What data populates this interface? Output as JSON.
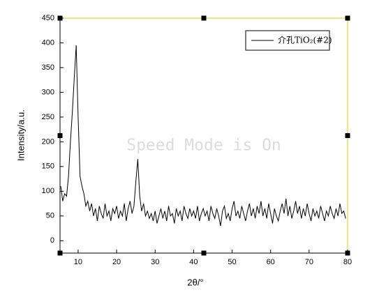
{
  "chart_data": {
    "type": "line",
    "xlabel": "2θ/°",
    "ylabel": "Intensity/a.u.",
    "watermark": "Speed Mode is On",
    "xlim": [
      5.3,
      80
    ],
    "ylim": [
      -25,
      450
    ],
    "xticks": [
      10,
      20,
      30,
      40,
      50,
      60,
      70,
      80
    ],
    "yticks": [
      0,
      50,
      100,
      150,
      200,
      250,
      300,
      350,
      400,
      450
    ],
    "legend": "top-right",
    "x": [
      5.5,
      6,
      6.5,
      7,
      7.5,
      8,
      8.5,
      9,
      9.5,
      10,
      10.5,
      11,
      11.5,
      12,
      12.5,
      13,
      13.5,
      14,
      14.5,
      15,
      15.5,
      16,
      16.5,
      17,
      17.5,
      18,
      18.5,
      19,
      19.5,
      20,
      20.5,
      21,
      21.5,
      22,
      22.5,
      23,
      23.5,
      24,
      24.5,
      25,
      25.5,
      26,
      26.5,
      27,
      27.5,
      28,
      28.5,
      29,
      29.5,
      30,
      30.5,
      31,
      31.5,
      32,
      32.5,
      33,
      33.5,
      34,
      34.5,
      35,
      35.5,
      36,
      36.5,
      37,
      37.5,
      38,
      38.5,
      39,
      39.5,
      40,
      40.5,
      41,
      41.5,
      42,
      42.5,
      43,
      43.5,
      44,
      44.5,
      45,
      45.5,
      46,
      46.5,
      47,
      47.5,
      48,
      48.5,
      49,
      49.5,
      50,
      50.5,
      51,
      51.5,
      52,
      52.5,
      53,
      53.5,
      54,
      54.5,
      55,
      55.5,
      56,
      56.5,
      57,
      57.5,
      58,
      58.5,
      59,
      59.5,
      60,
      60.5,
      61,
      61.5,
      62,
      62.5,
      63,
      63.5,
      64,
      64.5,
      65,
      65.5,
      66,
      66.5,
      67,
      67.5,
      68,
      68.5,
      69,
      69.5,
      70,
      70.5,
      71,
      71.5,
      72,
      72.5,
      73,
      73.5,
      74,
      74.5,
      75,
      75.5,
      76,
      76.5,
      77,
      77.5,
      78,
      78.5,
      79,
      79.5
    ],
    "series": [
      {
        "name": "介孔TiO₂(#2)",
        "color": "#000000",
        "values": [
          110,
          80,
          95,
          90,
          130,
          200,
          260,
          330,
          395,
          250,
          130,
          110,
          95,
          70,
          80,
          60,
          75,
          50,
          65,
          40,
          70,
          55,
          45,
          75,
          50,
          60,
          40,
          65,
          55,
          70,
          45,
          60,
          50,
          75,
          40,
          65,
          80,
          55,
          70,
          120,
          165,
          90,
          60,
          75,
          50,
          60,
          45,
          55,
          40,
          60,
          35,
          50,
          65,
          45,
          60,
          40,
          70,
          50,
          55,
          35,
          65,
          50,
          60,
          40,
          70,
          55,
          45,
          65,
          50,
          60,
          45,
          70,
          40,
          55,
          65,
          50,
          60,
          40,
          70,
          55,
          45,
          65,
          50,
          30,
          60,
          70,
          45,
          55,
          40,
          65,
          80,
          50,
          60,
          45,
          70,
          55,
          40,
          60,
          75,
          50,
          65,
          45,
          70,
          55,
          80,
          50,
          65,
          45,
          75,
          55,
          35,
          65,
          50,
          40,
          60,
          75,
          55,
          85,
          50,
          70,
          45,
          60,
          80,
          55,
          70,
          45,
          65,
          50,
          75,
          55,
          40,
          65,
          50,
          60,
          45,
          70,
          55,
          40,
          60,
          50,
          70,
          55,
          45,
          65,
          50,
          75,
          55,
          60,
          45
        ]
      }
    ]
  }
}
